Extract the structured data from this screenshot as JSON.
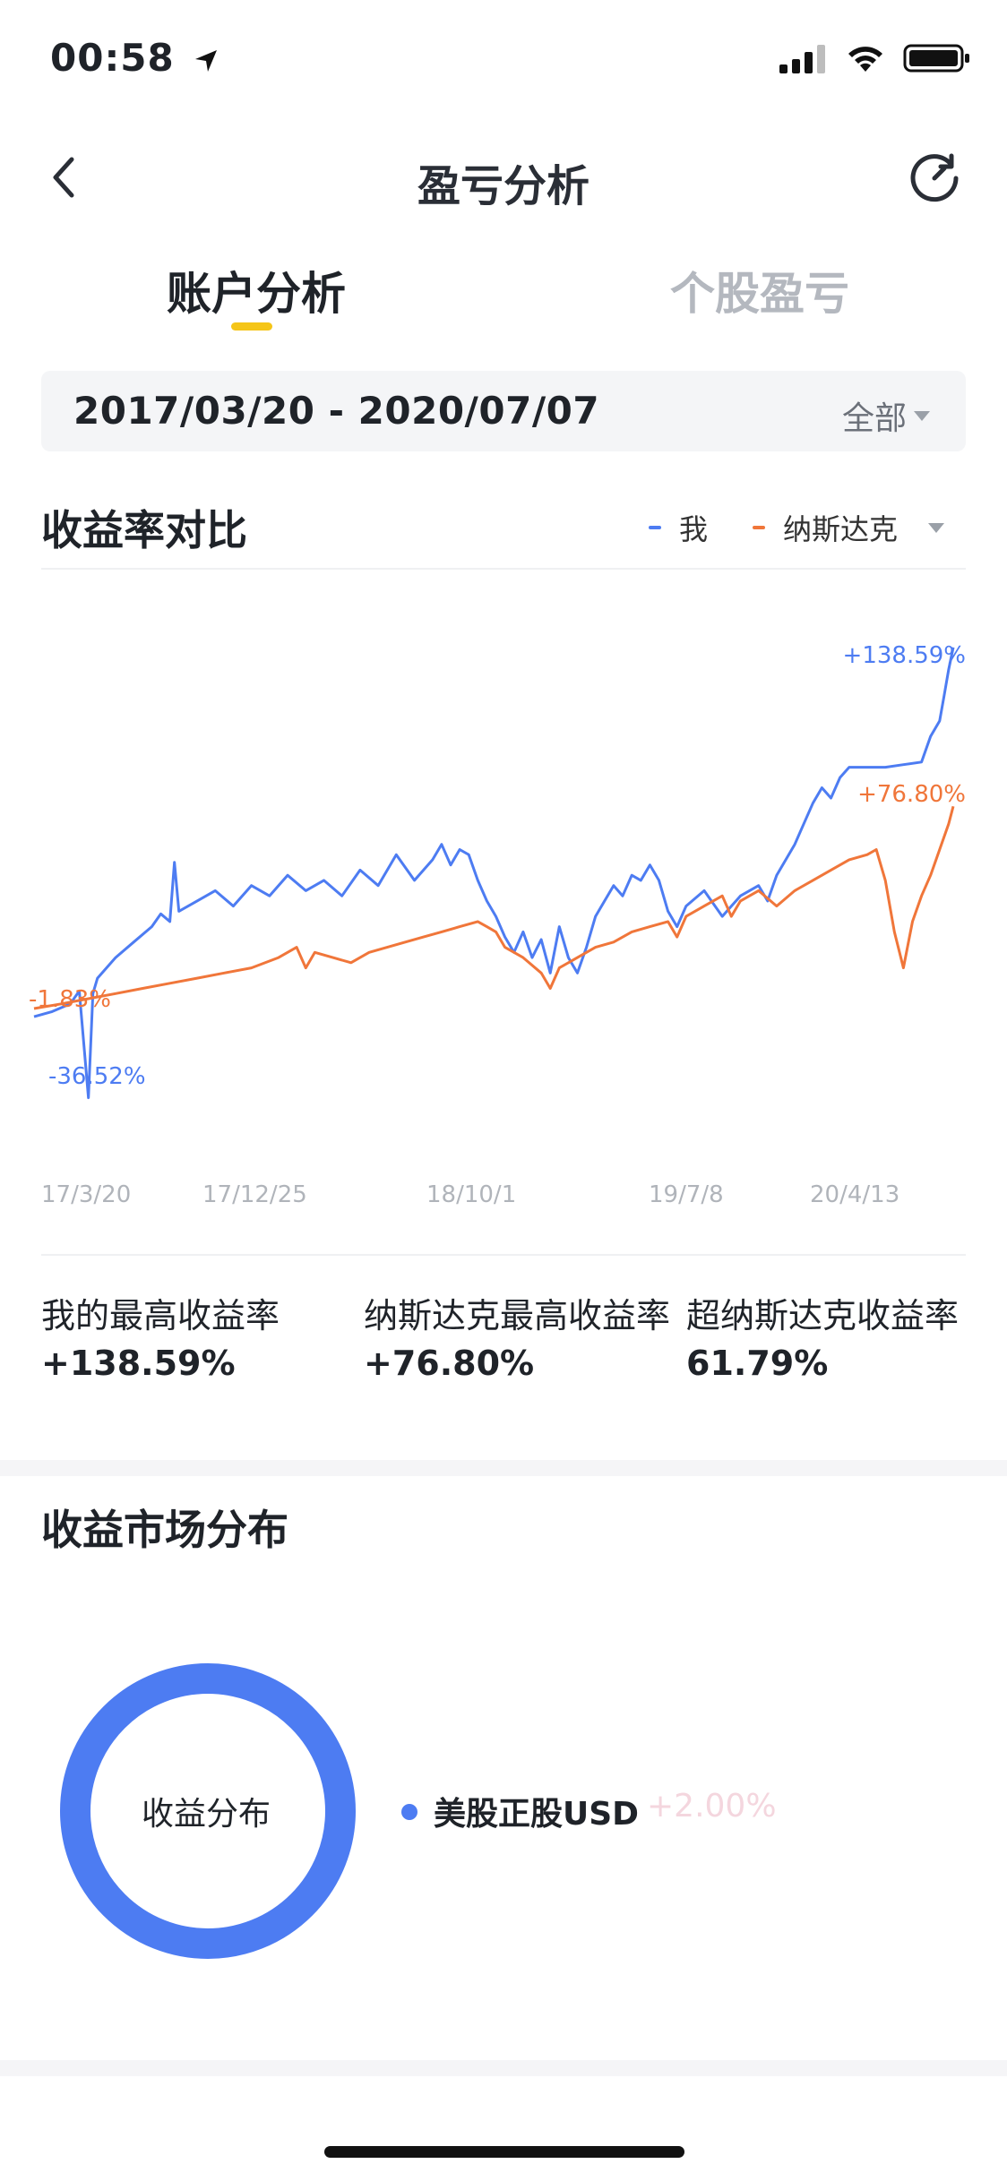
{
  "status_bar": {
    "time": "00:58"
  },
  "nav": {
    "title": "盈亏分析"
  },
  "tabs": [
    {
      "label": "账户分析",
      "active": true
    },
    {
      "label": "个股盈亏",
      "active": false
    }
  ],
  "date_range": {
    "text": "2017/03/20 - 2020/07/07",
    "filter_label": "全部"
  },
  "comparison": {
    "title": "收益率对比",
    "legend": [
      {
        "name": "我",
        "color": "#4d7cf2"
      },
      {
        "name": "纳斯达克",
        "color": "#f0763a"
      }
    ]
  },
  "chart_data": {
    "type": "line",
    "x_ticks": [
      "17/3/20",
      "17/12/25",
      "18/10/1",
      "19/7/8",
      "20/4/13"
    ],
    "annotations": {
      "me_max": "+138.59%",
      "me_min": "-36.52%",
      "nasdaq_max": "+76.80%",
      "nasdaq_min": "-1.83%"
    },
    "ylim": [
      -45,
      150
    ],
    "series": [
      {
        "name": "我",
        "color": "#4d7cf2",
        "points": [
          [
            0,
            -5
          ],
          [
            2,
            -3
          ],
          [
            4,
            0
          ],
          [
            5,
            5
          ],
          [
            6,
            -36.52
          ],
          [
            6.5,
            4
          ],
          [
            7,
            10
          ],
          [
            9,
            18
          ],
          [
            11,
            24
          ],
          [
            13,
            30
          ],
          [
            14,
            35
          ],
          [
            15,
            32
          ],
          [
            15.5,
            55
          ],
          [
            16,
            36
          ],
          [
            18,
            40
          ],
          [
            20,
            44
          ],
          [
            22,
            38
          ],
          [
            24,
            46
          ],
          [
            26,
            42
          ],
          [
            28,
            50
          ],
          [
            30,
            44
          ],
          [
            32,
            48
          ],
          [
            34,
            42
          ],
          [
            36,
            52
          ],
          [
            38,
            46
          ],
          [
            40,
            58
          ],
          [
            42,
            48
          ],
          [
            44,
            56
          ],
          [
            45,
            62
          ],
          [
            46,
            54
          ],
          [
            47,
            60
          ],
          [
            48,
            58
          ],
          [
            49,
            48
          ],
          [
            50,
            40
          ],
          [
            51,
            34
          ],
          [
            52,
            26
          ],
          [
            53,
            20
          ],
          [
            54,
            28
          ],
          [
            55,
            18
          ],
          [
            56,
            25
          ],
          [
            57,
            12
          ],
          [
            58,
            30
          ],
          [
            59,
            18
          ],
          [
            60,
            12
          ],
          [
            61,
            22
          ],
          [
            62,
            34
          ],
          [
            63,
            40
          ],
          [
            64,
            46
          ],
          [
            65,
            42
          ],
          [
            66,
            50
          ],
          [
            67,
            48
          ],
          [
            68,
            54
          ],
          [
            69,
            48
          ],
          [
            70,
            36
          ],
          [
            71,
            30
          ],
          [
            72,
            38
          ],
          [
            74,
            44
          ],
          [
            76,
            34
          ],
          [
            78,
            42
          ],
          [
            80,
            46
          ],
          [
            81,
            40
          ],
          [
            82,
            50
          ],
          [
            84,
            62
          ],
          [
            85,
            70
          ],
          [
            86,
            78
          ],
          [
            87,
            84
          ],
          [
            88,
            80
          ],
          [
            89,
            88
          ],
          [
            90,
            92
          ],
          [
            92,
            92
          ],
          [
            94,
            92
          ],
          [
            96,
            93
          ],
          [
            98,
            94
          ],
          [
            99,
            104
          ],
          [
            100,
            110
          ],
          [
            100.5,
            120
          ],
          [
            101,
            130
          ],
          [
            101.5,
            138.59
          ]
        ]
      },
      {
        "name": "纳斯达克",
        "color": "#f0763a",
        "points": [
          [
            0,
            -1.83
          ],
          [
            3,
            0
          ],
          [
            6,
            2
          ],
          [
            9,
            4
          ],
          [
            12,
            6
          ],
          [
            15,
            8
          ],
          [
            18,
            10
          ],
          [
            21,
            12
          ],
          [
            24,
            14
          ],
          [
            27,
            18
          ],
          [
            29,
            22
          ],
          [
            30,
            14
          ],
          [
            31,
            20
          ],
          [
            33,
            18
          ],
          [
            35,
            16
          ],
          [
            37,
            20
          ],
          [
            39,
            22
          ],
          [
            41,
            24
          ],
          [
            43,
            26
          ],
          [
            45,
            28
          ],
          [
            47,
            30
          ],
          [
            49,
            32
          ],
          [
            50,
            30
          ],
          [
            51,
            28
          ],
          [
            52,
            22
          ],
          [
            54,
            18
          ],
          [
            56,
            12
          ],
          [
            57,
            6
          ],
          [
            58,
            14
          ],
          [
            60,
            18
          ],
          [
            62,
            22
          ],
          [
            64,
            24
          ],
          [
            66,
            28
          ],
          [
            68,
            30
          ],
          [
            70,
            32
          ],
          [
            71,
            26
          ],
          [
            72,
            34
          ],
          [
            74,
            38
          ],
          [
            76,
            42
          ],
          [
            77,
            34
          ],
          [
            78,
            40
          ],
          [
            80,
            44
          ],
          [
            82,
            38
          ],
          [
            84,
            44
          ],
          [
            86,
            48
          ],
          [
            88,
            52
          ],
          [
            90,
            56
          ],
          [
            92,
            58
          ],
          [
            93,
            60
          ],
          [
            94,
            48
          ],
          [
            95,
            28
          ],
          [
            96,
            14
          ],
          [
            97,
            32
          ],
          [
            98,
            42
          ],
          [
            99,
            50
          ],
          [
            100,
            60
          ],
          [
            101,
            70
          ],
          [
            101.5,
            76.8
          ]
        ]
      }
    ]
  },
  "stats": [
    {
      "label": "我的最高收益率",
      "value": "+138.59%"
    },
    {
      "label": "纳斯达克最高收益率",
      "value": "+76.80%"
    },
    {
      "label": "超纳斯达克收益率",
      "value": "61.79%"
    }
  ],
  "distribution": {
    "title": "收益市场分布",
    "center_label": "收益分布",
    "items": [
      {
        "label": "美股正股USD",
        "value": "+2.00%",
        "color": "#4d7cf2",
        "share": 1.0
      }
    ]
  }
}
